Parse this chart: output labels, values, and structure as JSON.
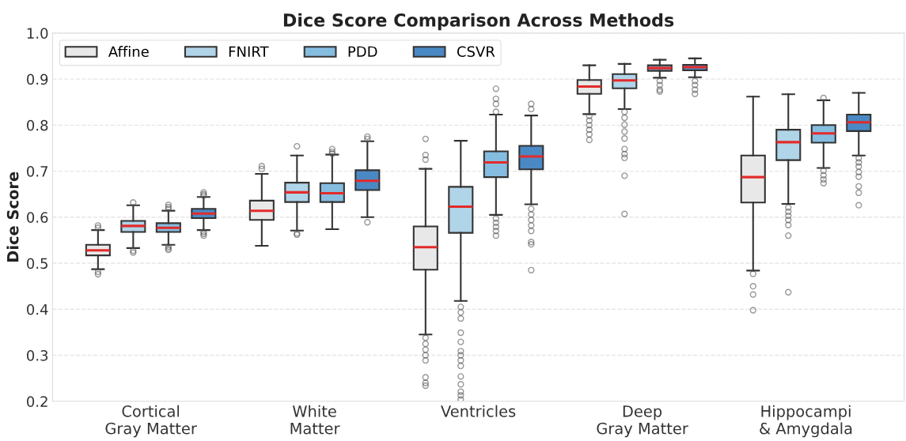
{
  "chart_data": {
    "type": "box",
    "title": "Dice Score Comparison Across Methods",
    "ylabel": "Dice Score",
    "categories": [
      "Cortical\nGray Matter",
      "White\nMatter",
      "Ventricles",
      "Deep\nGray Matter",
      "Hippocampi\n& Amygdala"
    ],
    "ylim": [
      0.2,
      1.0
    ],
    "yticks": [
      0.2,
      0.3,
      0.4,
      0.5,
      0.6,
      0.7,
      0.8,
      0.9,
      {
        "value": 1,
        "label": "1.0"
      }
    ],
    "grid": "y",
    "legend": "top left",
    "series": [
      {
        "name": "Affine",
        "color": "#e8e8e8",
        "boxes": [
          {
            "low": 0.487,
            "q1": 0.517,
            "median": 0.528,
            "q3": 0.54,
            "high": 0.572,
            "outliers": [
              0.582,
              0.577,
              0.481,
              0.476
            ]
          },
          {
            "low": 0.538,
            "q1": 0.594,
            "median": 0.614,
            "q3": 0.636,
            "high": 0.694,
            "outliers": [
              0.705,
              0.711
            ]
          },
          {
            "low": 0.345,
            "q1": 0.486,
            "median": 0.535,
            "q3": 0.58,
            "high": 0.705,
            "outliers": [
              0.77,
              0.735,
              0.725,
              0.338,
              0.325,
              0.312,
              0.3,
              0.289,
              0.252,
              0.24,
              0.234
            ]
          },
          {
            "low": 0.824,
            "q1": 0.868,
            "median": 0.884,
            "q3": 0.898,
            "high": 0.93,
            "outliers": [
              0.82,
              0.81,
              0.8,
              0.79,
              0.78,
              0.768
            ]
          },
          {
            "low": 0.484,
            "q1": 0.632,
            "median": 0.687,
            "q3": 0.734,
            "high": 0.862,
            "outliers": [
              0.477,
              0.45,
              0.432,
              0.398
            ]
          }
        ]
      },
      {
        "name": "FNIRT",
        "color": "#b0d4e8",
        "boxes": [
          {
            "low": 0.533,
            "q1": 0.568,
            "median": 0.581,
            "q3": 0.592,
            "high": 0.626,
            "outliers": [
              0.632,
              0.527,
              0.523
            ]
          },
          {
            "low": 0.571,
            "q1": 0.633,
            "median": 0.654,
            "q3": 0.675,
            "high": 0.734,
            "outliers": [
              0.754,
              0.565,
              0.562
            ]
          },
          {
            "low": 0.418,
            "q1": 0.566,
            "median": 0.623,
            "q3": 0.666,
            "high": 0.766,
            "outliers": [
              0.405,
              0.393,
              0.38,
              0.349,
              0.329,
              0.309,
              0.3,
              0.289,
              0.277,
              0.254,
              0.237,
              0.221,
              0.213,
              0.204
            ]
          },
          {
            "low": 0.835,
            "q1": 0.88,
            "median": 0.897,
            "q3": 0.911,
            "high": 0.933,
            "outliers": [
              0.829,
              0.816,
              0.801,
              0.786,
              0.771,
              0.748,
              0.737,
              0.729,
              0.69,
              0.607
            ]
          },
          {
            "low": 0.629,
            "q1": 0.724,
            "median": 0.763,
            "q3": 0.79,
            "high": 0.867,
            "outliers": [
              0.621,
              0.612,
              0.603,
              0.594,
              0.583,
              0.56,
              0.437
            ]
          }
        ]
      },
      {
        "name": "PDD",
        "color": "#85bde0",
        "boxes": [
          {
            "low": 0.54,
            "q1": 0.568,
            "median": 0.577,
            "q3": 0.587,
            "high": 0.614,
            "outliers": [
              0.618,
              0.622,
              0.627,
              0.536,
              0.532,
              0.529
            ]
          },
          {
            "low": 0.574,
            "q1": 0.633,
            "median": 0.652,
            "q3": 0.674,
            "high": 0.736,
            "outliers": [
              0.738,
              0.742,
              0.748
            ]
          },
          {
            "low": 0.605,
            "q1": 0.687,
            "median": 0.719,
            "q3": 0.743,
            "high": 0.823,
            "outliers": [
              0.879,
              0.857,
              0.846,
              0.829,
              0.597,
              0.588,
              0.579,
              0.57,
              0.56
            ]
          },
          {
            "low": 0.903,
            "q1": 0.918,
            "median": 0.924,
            "q3": 0.93,
            "high": 0.942,
            "outliers": [
              0.896,
              0.887,
              0.877,
              0.873
            ]
          },
          {
            "low": 0.707,
            "q1": 0.762,
            "median": 0.782,
            "q3": 0.8,
            "high": 0.854,
            "outliers": [
              0.859,
              0.701,
              0.691,
              0.682,
              0.674
            ]
          }
        ]
      },
      {
        "name": "CSVR",
        "color": "#4a89c4",
        "boxes": [
          {
            "low": 0.572,
            "q1": 0.598,
            "median": 0.608,
            "q3": 0.618,
            "high": 0.644,
            "outliers": [
              0.647,
              0.65,
              0.654,
              0.568,
              0.564,
              0.56
            ]
          },
          {
            "low": 0.6,
            "q1": 0.659,
            "median": 0.679,
            "q3": 0.702,
            "high": 0.765,
            "outliers": [
              0.77,
              0.775,
              0.589
            ]
          },
          {
            "low": 0.628,
            "q1": 0.704,
            "median": 0.732,
            "q3": 0.755,
            "high": 0.821,
            "outliers": [
              0.846,
              0.835,
              0.618,
              0.606,
              0.594,
              0.582,
              0.57,
              0.546,
              0.541,
              0.485
            ]
          },
          {
            "low": 0.904,
            "q1": 0.919,
            "median": 0.926,
            "q3": 0.931,
            "high": 0.945,
            "outliers": [
              0.896,
              0.887,
              0.877,
              0.868
            ]
          },
          {
            "low": 0.734,
            "q1": 0.787,
            "median": 0.806,
            "q3": 0.823,
            "high": 0.87,
            "outliers": [
              0.728,
              0.719,
              0.71,
              0.698,
              0.688,
              0.667,
              0.653,
              0.626
            ]
          }
        ]
      }
    ]
  }
}
